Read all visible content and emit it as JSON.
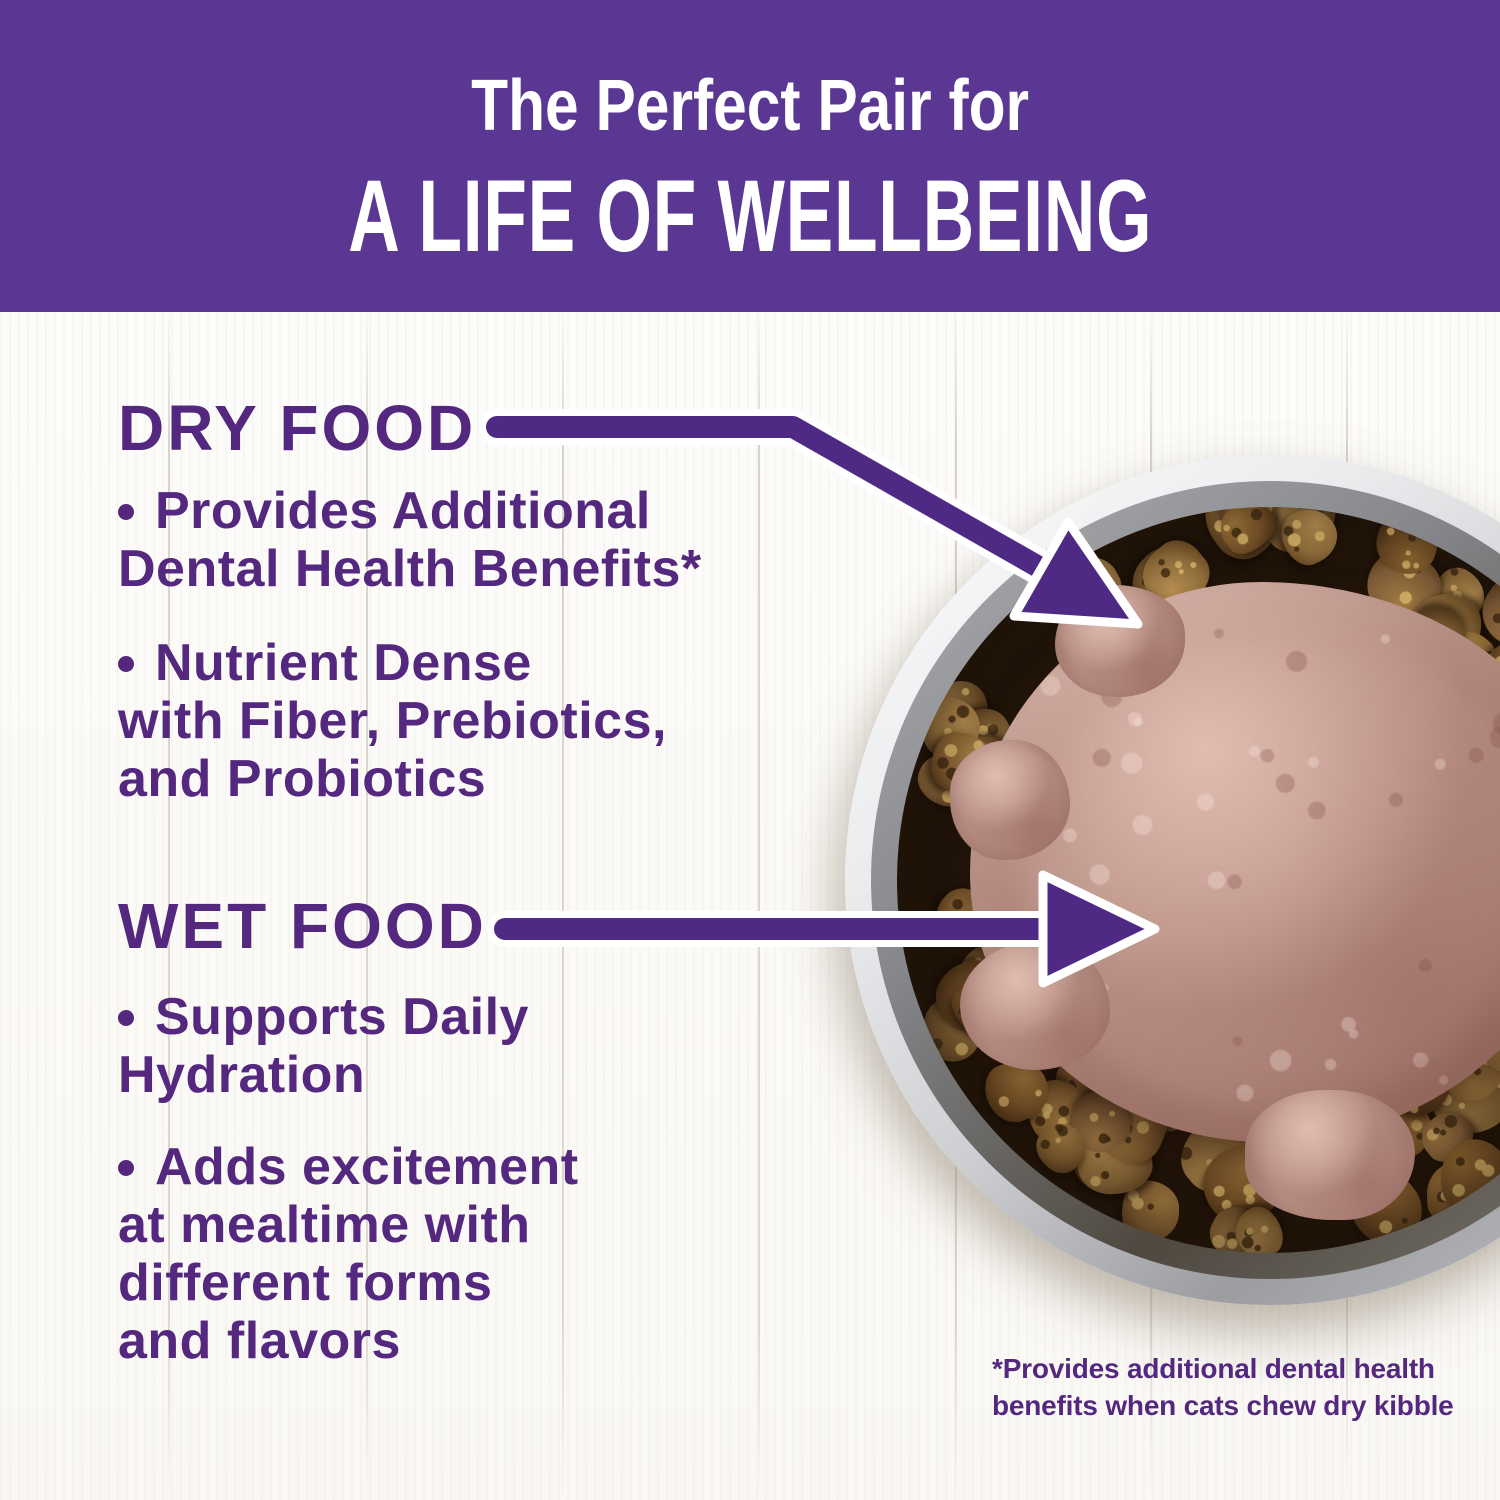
{
  "colors": {
    "banner_purple": "#5b3794",
    "body_purple": "#54287e",
    "arrow_purple": "#4f2a84",
    "heading_text": "#ffffff"
  },
  "banner": {
    "line1": "The Perfect Pair for",
    "line2": "A LIFE OF WELLBEING"
  },
  "sections": {
    "dry": {
      "heading": "DRY FOOD",
      "bullet1": {
        "l1": "Provides Additional",
        "l2": "Dental Health Benefits*"
      },
      "bullet2": {
        "l1": "Nutrient Dense",
        "l2": "with Fiber, Prebiotics,",
        "l3": "and Probiotics"
      }
    },
    "wet": {
      "heading": "WET FOOD",
      "bullet1": {
        "l1": "Supports Daily",
        "l2": "Hydration"
      },
      "bullet2": {
        "l1": "Adds excitement",
        "l2": "at mealtime with",
        "l3": "different forms",
        "l4": "and flavors"
      }
    }
  },
  "footnote": {
    "l1": "*Provides additional dental health",
    "l2": "benefits when cats chew dry kibble"
  },
  "illustration": {
    "bowl": "stainless-steel-bowl-top-view",
    "contents": [
      "dry-kibble",
      "wet-food-pate"
    ],
    "annotations": [
      "dry-food-arrow",
      "wet-food-arrow"
    ]
  }
}
